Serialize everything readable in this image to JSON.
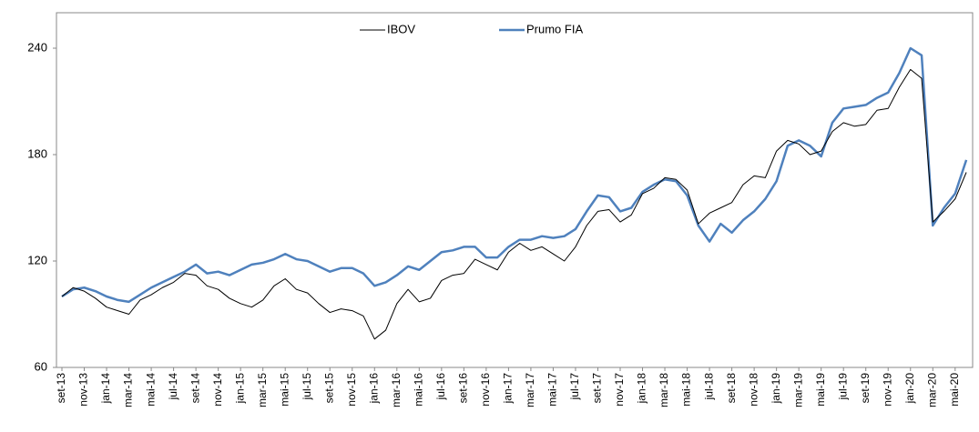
{
  "chart_data": {
    "type": "line",
    "categories": [
      "set-13",
      null,
      "nov-13",
      null,
      "jan-14",
      null,
      "mar-14",
      null,
      "mai-14",
      null,
      "jul-14",
      null,
      "set-14",
      null,
      "nov-14",
      null,
      "jan-15",
      null,
      "mar-15",
      null,
      "mai-15",
      null,
      "jul-15",
      null,
      "set-15",
      null,
      "nov-15",
      null,
      "jan-16",
      null,
      "mar-16",
      null,
      "mai-16",
      null,
      "jul-16",
      null,
      "set-16",
      null,
      "nov-16",
      null,
      "jan-17",
      null,
      "mar-17",
      null,
      "mai-17",
      null,
      "jul-17",
      null,
      "set-17",
      null,
      "nov-17",
      null,
      "jan-18",
      null,
      "mar-18",
      null,
      "mai-18",
      null,
      "jul-18",
      null,
      "set-18",
      null,
      "nov-18",
      null,
      "jan-19",
      null,
      "mar-19",
      null,
      "mai-19",
      null,
      "jul-19",
      null,
      "set-19",
      null,
      "nov-19",
      null,
      "jan-20",
      null,
      "mar-20",
      null,
      "mai-20",
      null
    ],
    "series": [
      {
        "name": "IBOV",
        "color": "#000000",
        "values": [
          100,
          105,
          103,
          99,
          94,
          92,
          90,
          98,
          101,
          105,
          108,
          113,
          112,
          106,
          104,
          99,
          96,
          94,
          98,
          106,
          110,
          104,
          102,
          96,
          91,
          93,
          92,
          89,
          76,
          81,
          96,
          104,
          97,
          99,
          109,
          112,
          113,
          121,
          118,
          115,
          125,
          130,
          126,
          128,
          124,
          120,
          128,
          140,
          148,
          149,
          142,
          146,
          158,
          161,
          167,
          166,
          160,
          141,
          147,
          150,
          153,
          163,
          168,
          167,
          182,
          188,
          186,
          180,
          182,
          193,
          198,
          196,
          197,
          205,
          206,
          218,
          228,
          223,
          142,
          148,
          155,
          170
        ]
      },
      {
        "name": "Prumo FIA",
        "color": "#4f81bd",
        "values": [
          100,
          104,
          105,
          103,
          100,
          98,
          97,
          101,
          105,
          108,
          111,
          114,
          118,
          113,
          114,
          112,
          115,
          118,
          119,
          121,
          124,
          121,
          120,
          117,
          114,
          116,
          116,
          113,
          106,
          108,
          112,
          117,
          115,
          120,
          125,
          126,
          128,
          128,
          122,
          122,
          128,
          132,
          132,
          134,
          133,
          134,
          138,
          148,
          157,
          156,
          148,
          150,
          159,
          163,
          166,
          165,
          157,
          140,
          131,
          141,
          136,
          143,
          148,
          155,
          165,
          185,
          188,
          185,
          179,
          198,
          206,
          207,
          208,
          212,
          215,
          226,
          240,
          236,
          140,
          150,
          158,
          177
        ]
      }
    ],
    "ylim": [
      60,
      260
    ],
    "yticks": [
      60,
      120,
      180,
      240
    ]
  }
}
